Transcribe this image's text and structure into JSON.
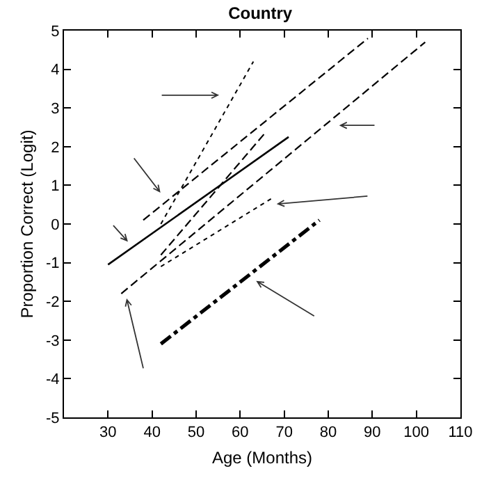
{
  "chart_data": {
    "type": "line",
    "title": "Country",
    "xlabel": "Age (Months)",
    "ylabel": "Proportion Correct (Logit)",
    "xlim": [
      20,
      110
    ],
    "xticks": [
      30,
      40,
      50,
      60,
      70,
      80,
      90,
      100,
      110
    ],
    "ylim": [
      -5,
      5
    ],
    "yticks": [
      -5,
      -4,
      -3,
      -2,
      -1,
      0,
      1,
      2,
      3,
      4,
      5
    ],
    "grid": false,
    "marker": "none",
    "series": [
      {
        "color": "#000000",
        "line_style": "solid",
        "x": [
          30,
          71
        ],
        "values": [
          -1.05,
          2.25
        ]
      },
      {
        "color": "#000000",
        "line_style": "dashed",
        "x": [
          38,
          89
        ],
        "values": [
          0.1,
          4.8
        ]
      },
      {
        "color": "#000000",
        "line_style": "dotted",
        "x": [
          42,
          63
        ],
        "values": [
          0.0,
          4.2
        ]
      },
      {
        "color": "#000000",
        "line_style": "dashed",
        "x": [
          33,
          102
        ],
        "values": [
          -1.8,
          4.7
        ]
      },
      {
        "color": "#000000",
        "line_style": "dashed",
        "x": [
          42,
          66
        ],
        "values": [
          -0.8,
          2.4
        ]
      },
      {
        "color": "#000000",
        "line_style": "dotted",
        "x": [
          42,
          67
        ],
        "values": [
          -1.1,
          0.65
        ]
      },
      {
        "color": "#000000",
        "line_style": "dashdot",
        "x": [
          42,
          78
        ],
        "values": [
          -3.1,
          0.1
        ]
      }
    ]
  }
}
